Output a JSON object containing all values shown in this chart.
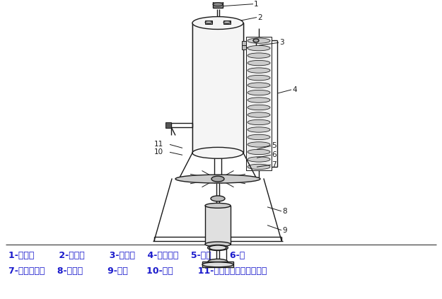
{
  "bg_color": "#ffffff",
  "lc": "#1a1a1a",
  "caption_lines": [
    "1-皮带轮        2-排气管        3-消泡器    4-冷却排管    5-定子      6-轴",
    "7-双端面轴封    8-联轴器        9-电机      10-转子        11-端面轴封自吸式发酵罐"
  ],
  "caption_color": "#1a1acc",
  "caption_fontsize": 9.0,
  "ann_color": "#1a1a1a",
  "ann_fs": 7.5
}
